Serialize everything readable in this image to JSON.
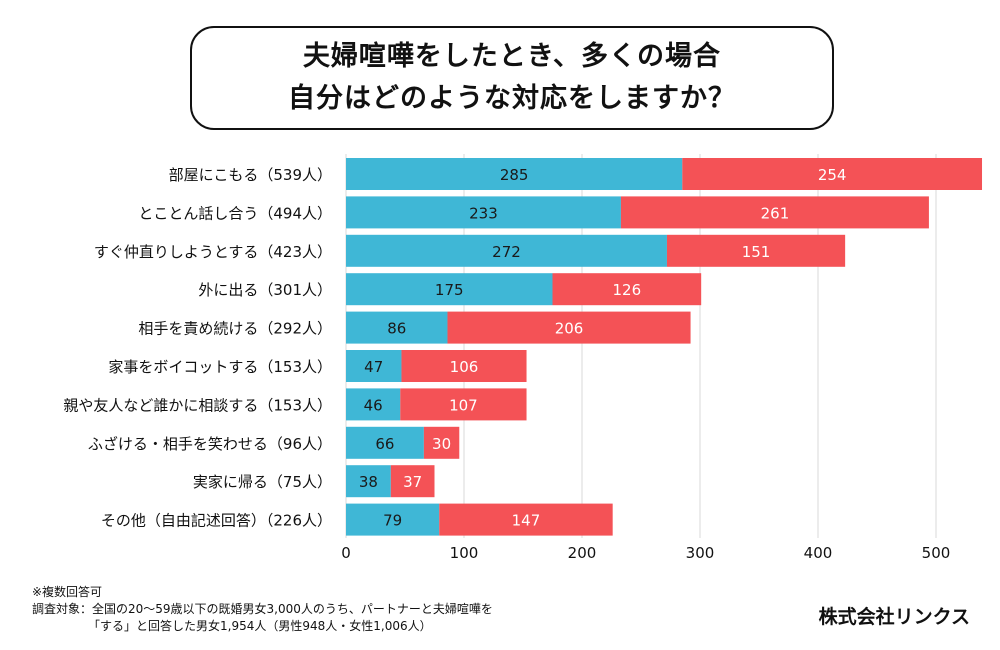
{
  "title": {
    "line1": "夫婦喧嘩をしたとき、多くの場合",
    "line2": "自分はどのような対応をしますか？"
  },
  "colors": {
    "series1": "#3fb7d6",
    "series2": "#f45256",
    "grid": "#d9d9d9"
  },
  "chart_data": {
    "type": "bar",
    "orientation": "horizontal",
    "stacked": true,
    "categories": [
      "部屋にこもる（539人）",
      "とことん話し合う（494人）",
      "すぐ仲直りしようとする（423人）",
      "外に出る（301人）",
      "相手を責め続ける（292人）",
      "家事をボイコットする（153人）",
      "親や友人など誰かに相談する（153人）",
      "ふざける・相手を笑わせる（96人）",
      "実家に帰る（75人）",
      "その他（自由記述回答）（226人）"
    ],
    "series": [
      {
        "values": [
          285,
          233,
          272,
          175,
          86,
          47,
          46,
          66,
          38,
          79
        ]
      },
      {
        "values": [
          254,
          261,
          151,
          126,
          206,
          106,
          107,
          30,
          37,
          147
        ]
      }
    ],
    "x_ticks": [
      0,
      100,
      200,
      300,
      400,
      500
    ],
    "xlim": [
      0,
      540
    ],
    "grid": true
  },
  "footnotes": [
    "※複数回答可",
    "調査対象：全国の20〜59歳以下の既婚男女3,000人のうち、パートナーと夫婦喧嘩を",
    "「する」と回答した男女1,954人（男性948人・女性1,006人）"
  ],
  "company": "株式会社リンクス"
}
